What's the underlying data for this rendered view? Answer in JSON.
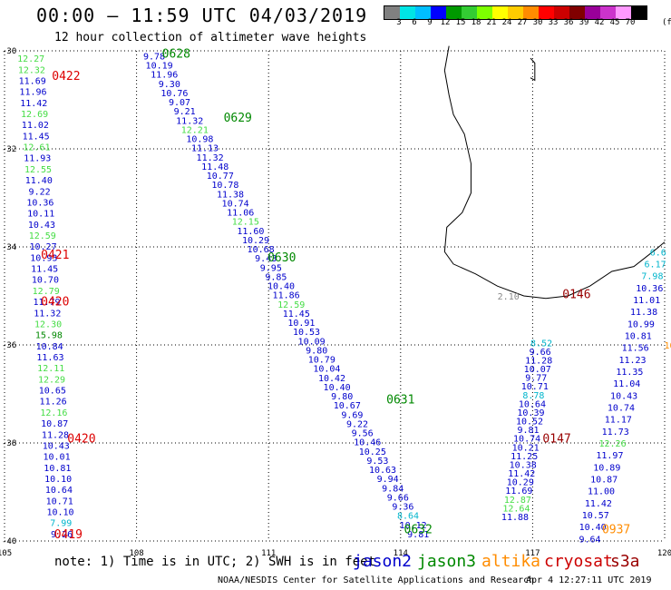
{
  "header": {
    "title": "00:00 – 11:59 UTC 04/03/2019",
    "subtitle": "12 hour collection of altimeter wave heights",
    "colorbar_colors": [
      "#808080",
      "#00e5e5",
      "#00bfff",
      "#0000ff",
      "#009900",
      "#33cc33",
      "#7dff00",
      "#ffff00",
      "#ffcc00",
      "#ff8c00",
      "#ff0000",
      "#cc0000",
      "#800000",
      "#990099",
      "#cc33cc",
      "#ff99ff",
      "#000000"
    ],
    "colorbar_ticks": [
      "3",
      "6",
      "9",
      "12",
      "15",
      "18",
      "21",
      "24",
      "27",
      "30",
      "33",
      "36",
      "39",
      "42",
      "45",
      "70"
    ],
    "colorbar_unit": "(ft)"
  },
  "map": {
    "lon_labels": [
      "105",
      "108",
      "111",
      "114",
      "117",
      "120"
    ],
    "lat_labels": [
      "-30",
      "-32",
      "-34",
      "-36",
      "-38",
      "-40"
    ],
    "grid_lons": [
      105,
      108,
      111,
      114,
      117,
      120
    ],
    "grid_lats": [
      -30,
      -32,
      -34,
      -36,
      -38,
      -40
    ],
    "extent": {
      "lon_min": 105,
      "lon_max": 120,
      "lat_min": -40,
      "lat_max": -30
    }
  },
  "colors": {
    "jason2": "#0000cc",
    "jason3": "#008800",
    "jason3_light": "#44dd44",
    "altika": "#ff8c00",
    "cryosat": "#cc0000",
    "s3a": "#990000",
    "cyan": "#00b5cc",
    "gray": "#888888",
    "time_red": "#dd0000",
    "time_green": "#008800"
  },
  "tracks": [
    {
      "name": "track-left",
      "values": [
        "12.27",
        "12.32",
        "11.69",
        "11.96",
        "11.42",
        "12.69",
        "11.02",
        "11.45",
        "12.61",
        "11.93",
        "12.55",
        "11.40",
        "9.22",
        "10.36",
        "10.11",
        "10.43",
        "12.59",
        "10.27",
        "10.93",
        "11.45",
        "10.70",
        "12.79",
        "11.79",
        "11.32",
        "12.30",
        "15.98",
        "10.84",
        "11.63",
        "12.11",
        "12.29",
        "10.65",
        "11.26",
        "12.16",
        "10.87",
        "11.28",
        "10.43",
        "10.01",
        "10.81",
        "10.10",
        "10.64",
        "10.71",
        "10.10",
        "7.99",
        "9.26"
      ],
      "colors": [
        "L",
        "L",
        "B",
        "B",
        "B",
        "L",
        "B",
        "B",
        "L",
        "B",
        "L",
        "B",
        "B",
        "B",
        "B",
        "B",
        "L",
        "B",
        "B",
        "B",
        "B",
        "L",
        "B",
        "B",
        "L",
        "G",
        "B",
        "B",
        "L",
        "L",
        "B",
        "B",
        "L",
        "B",
        "B",
        "B",
        "B",
        "B",
        "B",
        "B",
        "B",
        "B",
        "C",
        "B"
      ]
    },
    {
      "name": "track-middle",
      "values": [
        "9.78",
        "10.19",
        "11.96",
        "9.30",
        "10.76",
        "9.07",
        "9.21",
        "11.32",
        "12.21",
        "10.98",
        "11.13",
        "11.32",
        "11.48",
        "10.77",
        "10.78",
        "11.38",
        "10.74",
        "11.06",
        "12.15",
        "11.60",
        "10.29",
        "10.68",
        "9.43",
        "9.95",
        "9.85",
        "10.40",
        "11.86",
        "12.59",
        "11.45",
        "10.91",
        "10.53",
        "10.09",
        "9.80",
        "10.79",
        "10.04",
        "10.42",
        "10.40",
        "9.80",
        "10.67",
        "9.69",
        "9.22",
        "9.56",
        "10.46",
        "10.25",
        "9.53",
        "10.63",
        "9.94",
        "9.84",
        "9.66",
        "9.36",
        "8.64",
        "10.12",
        "9.81"
      ],
      "colors": [
        "B",
        "B",
        "B",
        "B",
        "B",
        "B",
        "B",
        "B",
        "L",
        "B",
        "B",
        "B",
        "B",
        "B",
        "B",
        "B",
        "B",
        "B",
        "L",
        "B",
        "B",
        "B",
        "B",
        "B",
        "B",
        "B",
        "B",
        "L",
        "B",
        "B",
        "B",
        "B",
        "B",
        "B",
        "B",
        "B",
        "B",
        "B",
        "B",
        "B",
        "B",
        "B",
        "B",
        "B",
        "B",
        "B",
        "B",
        "B",
        "B",
        "B",
        "C",
        "B",
        "B"
      ]
    },
    {
      "name": "track-right1",
      "values": [
        "8.52",
        "9.66",
        "11.28",
        "10.07",
        "9.77",
        "10.71",
        "8.78",
        "10.64",
        "10.39",
        "10.52",
        "9.81",
        "10.74",
        "10.21",
        "11.25",
        "10.38",
        "11.42",
        "10.29",
        "11.69",
        "12.87",
        "12.64",
        "11.88"
      ],
      "colors": [
        "C",
        "B",
        "B",
        "B",
        "B",
        "B",
        "C",
        "B",
        "B",
        "B",
        "B",
        "B",
        "B",
        "B",
        "B",
        "B",
        "B",
        "B",
        "L",
        "L",
        "B"
      ]
    },
    {
      "name": "track-right2",
      "values": [
        "6.6",
        "6.17",
        "7.98",
        "10.36",
        "11.01",
        "11.38",
        "10.99",
        "10.81",
        "11.56",
        "11.23",
        "11.35",
        "11.04",
        "10.43",
        "10.74",
        "11.17",
        "11.73",
        "12.26",
        "11.97",
        "10.89",
        "10.87",
        "11.00",
        "11.42",
        "10.57",
        "10.40",
        "9.64"
      ],
      "colors": [
        "C",
        "C",
        "C",
        "B",
        "B",
        "B",
        "B",
        "B",
        "B",
        "B",
        "B",
        "B",
        "B",
        "B",
        "B",
        "B",
        "L",
        "B",
        "B",
        "B",
        "B",
        "B",
        "B",
        "B",
        "B"
      ]
    }
  ],
  "extra_values": [
    {
      "text": "2.10",
      "color": "gray"
    },
    {
      "text": "10",
      "color": "altika"
    }
  ],
  "time_labels": [
    {
      "text": "0422",
      "color": "time_red"
    },
    {
      "text": "0421",
      "color": "time_red"
    },
    {
      "text": "0420",
      "color": "time_red"
    },
    {
      "text": "0420",
      "color": "time_red"
    },
    {
      "text": "0419",
      "color": "time_red"
    },
    {
      "text": "0628",
      "color": "time_green"
    },
    {
      "text": "0629",
      "color": "time_green"
    },
    {
      "text": "0630",
      "color": "time_green"
    },
    {
      "text": "0631",
      "color": "time_green"
    },
    {
      "text": "0632",
      "color": "time_green"
    },
    {
      "text": "0146",
      "color": "s3a"
    },
    {
      "text": "0147",
      "color": "s3a"
    },
    {
      "text": "0937",
      "color": "altika"
    }
  ],
  "note": "note: 1) Time is in UTC; 2) SWH is in feet",
  "legend": [
    {
      "label": "jason2",
      "color": "#0000cc"
    },
    {
      "label": "jason3",
      "color": "#008800"
    },
    {
      "label": "altika",
      "color": "#ff8c00"
    },
    {
      "label": "cryosat",
      "color": "#cc0000"
    },
    {
      "label": "s3a",
      "color": "#990000"
    }
  ],
  "footer": {
    "credit": "NOAA/NESDIS Center for Satellite Applications and Research",
    "timestamp": "Apr  4 12:27:11 UTC 2019"
  }
}
